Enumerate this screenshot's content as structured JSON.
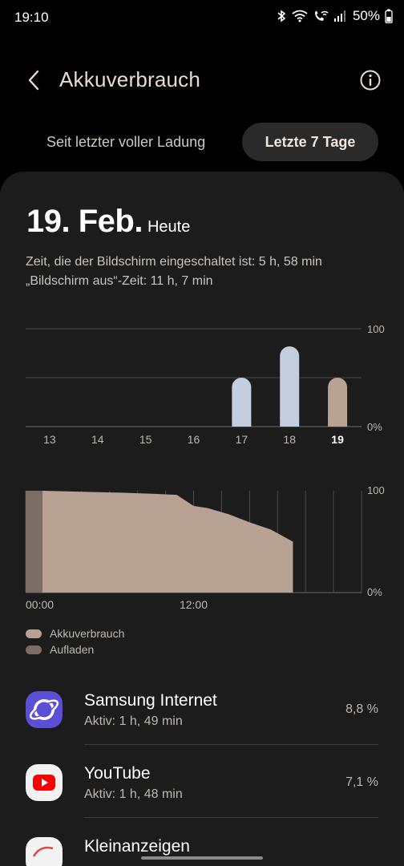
{
  "status_bar": {
    "time": "19:10",
    "battery": "50%",
    "icons": [
      "bluetooth-icon",
      "wifi-icon",
      "wifi-calling-icon",
      "signal-icon",
      "battery-icon"
    ]
  },
  "header": {
    "title": "Akkuverbrauch",
    "back_icon": "chevron-left-icon",
    "info_icon": "info-icon"
  },
  "tabs": [
    {
      "label": "Seit letzter voller Ladung",
      "selected": false
    },
    {
      "label": "Letzte 7 Tage",
      "selected": true
    }
  ],
  "date": {
    "day": "19. Feb.",
    "label": "Heute"
  },
  "usage": {
    "screen_on": "Zeit, die der Bildschirm eingeschaltet ist: 5 h, 58 min",
    "screen_off": "„Bildschirm aus“-Zeit: 11 h, 7 min"
  },
  "chart_data": [
    {
      "type": "bar",
      "categories": [
        "13",
        "14",
        "15",
        "16",
        "17",
        "18",
        "19"
      ],
      "values": [
        0,
        0,
        0,
        0,
        50,
        82,
        50
      ],
      "selected_category": "19",
      "yticks": [
        "100",
        "0%"
      ],
      "ylim": [
        0,
        100
      ],
      "colors": {
        "bar": "#c3cfdf",
        "selected": "#b8a293"
      }
    },
    {
      "type": "area",
      "xticks": [
        "00:00",
        "12:00"
      ],
      "yticks": [
        "100",
        "0%"
      ],
      "ylim": [
        0,
        100
      ],
      "xlim": [
        0,
        24
      ],
      "series": [
        {
          "name": "Aufladen",
          "x": [
            0,
            1.2
          ],
          "values": [
            100,
            100
          ]
        },
        {
          "name": "Akkuverbrauch",
          "x": [
            1.2,
            4,
            7,
            9,
            10.8,
            12,
            13,
            14.5,
            16,
            17.5,
            19.1
          ],
          "values": [
            100,
            99,
            98,
            97,
            96,
            85,
            83,
            77,
            69,
            62,
            50
          ]
        }
      ],
      "colors": {
        "usage": "#b8a293",
        "charging": "#7d6e65"
      }
    }
  ],
  "legend": [
    {
      "label": "Akkuverbrauch",
      "color": "#b8a293"
    },
    {
      "label": "Aufladen",
      "color": "#7d6e65"
    }
  ],
  "apps": [
    {
      "name": "Samsung Internet",
      "active": "Aktiv: 1 h, 49 min",
      "percent": "8,8 %",
      "icon": "samsung-internet-icon"
    },
    {
      "name": "YouTube",
      "active": "Aktiv: 1 h, 48 min",
      "percent": "7,1 %",
      "icon": "youtube-icon"
    },
    {
      "name": "Kleinanzeigen",
      "active": "",
      "percent": "",
      "icon": "kleinanzeigen-icon"
    }
  ]
}
